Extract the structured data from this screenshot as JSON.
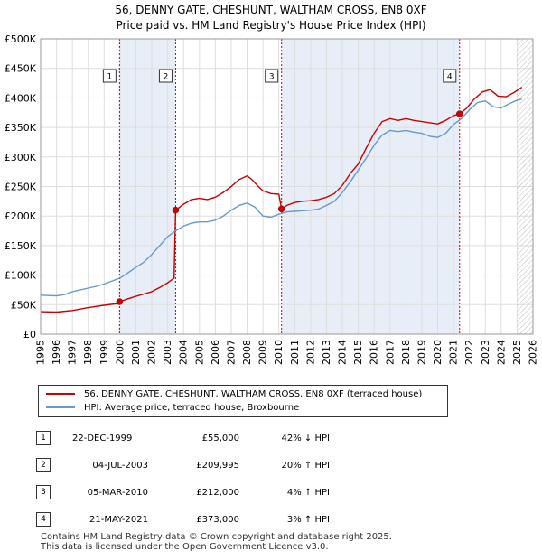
{
  "title_line1": "56, DENNY GATE, CHESHUNT, WALTHAM CROSS, EN8 0XF",
  "title_line2": "Price paid vs. HM Land Registry's House Price Index (HPI)",
  "legend": {
    "red": "56, DENNY GATE, CHESHUNT, WALTHAM CROSS, EN8 0XF (terraced house)",
    "blue": "HPI: Average price, terraced house, Broxbourne"
  },
  "colors": {
    "red": "#cc0000",
    "blue": "#6699cc",
    "band": "#e8eef8"
  },
  "sales": [
    {
      "num": "1",
      "date": "22-DEC-1999",
      "price": "£55,000",
      "hpi": "42% ↓ HPI"
    },
    {
      "num": "2",
      "date": "04-JUL-2003",
      "price": "£209,995",
      "hpi": "20% ↑ HPI"
    },
    {
      "num": "3",
      "date": "05-MAR-2010",
      "price": "£212,000",
      "hpi": "4% ↑ HPI"
    },
    {
      "num": "4",
      "date": "21-MAY-2021",
      "price": "£373,000",
      "hpi": "3% ↑ HPI"
    }
  ],
  "footer_line1": "Contains HM Land Registry data © Crown copyright and database right 2025.",
  "footer_line2": "This data is licensed under the Open Government Licence v3.0.",
  "chart_data": {
    "type": "line",
    "xlim": [
      1995,
      2026
    ],
    "ylim": [
      0,
      500000
    ],
    "y_ticks": [
      0,
      50000,
      100000,
      150000,
      200000,
      250000,
      300000,
      350000,
      400000,
      450000,
      500000
    ],
    "y_tick_labels": [
      "£0",
      "£50K",
      "£100K",
      "£150K",
      "£200K",
      "£250K",
      "£300K",
      "£350K",
      "£400K",
      "£450K",
      "£500K"
    ],
    "x_ticks": [
      1995,
      1996,
      1997,
      1998,
      1999,
      2000,
      2001,
      2002,
      2003,
      2004,
      2005,
      2006,
      2007,
      2008,
      2009,
      2010,
      2011,
      2012,
      2013,
      2014,
      2015,
      2016,
      2017,
      2018,
      2019,
      2020,
      2021,
      2022,
      2023,
      2024,
      2025,
      2026
    ],
    "x_tick_labels": [
      "1995",
      "1996",
      "1997",
      "1998",
      "1999",
      "2000",
      "2001",
      "2002",
      "2003",
      "2004",
      "2005",
      "2006",
      "2007",
      "2008",
      "2009",
      "2010",
      "2011",
      "2012",
      "2013",
      "2014",
      "2015",
      "2016",
      "2017",
      "2018",
      "2019",
      "2020",
      "2021",
      "2022",
      "2023",
      "2024",
      "2025",
      "2026"
    ],
    "grid": true,
    "shaded_bands": [
      [
        1999.97,
        2003.5
      ],
      [
        2010.17,
        2021.38
      ]
    ],
    "hatched_after": 2025.0,
    "markers": [
      {
        "label": "1",
        "x": 1999.97,
        "y": 55000
      },
      {
        "label": "2",
        "x": 2003.5,
        "y": 209995
      },
      {
        "label": "3",
        "x": 2010.17,
        "y": 212000
      },
      {
        "label": "4",
        "x": 2021.38,
        "y": 373000
      }
    ],
    "series": [
      {
        "name": "56, DENNY GATE, CHESHUNT, WALTHAM CROSS, EN8 0XF (terraced house)",
        "color": "#cc0000",
        "points": [
          [
            1995,
            38000
          ],
          [
            1996,
            37500
          ],
          [
            1997,
            40000
          ],
          [
            1998,
            45000
          ],
          [
            1999,
            49000
          ],
          [
            1999.9,
            52000
          ],
          [
            1999.97,
            55000
          ],
          [
            2000.5,
            60000
          ],
          [
            2001,
            64000
          ],
          [
            2001.5,
            68000
          ],
          [
            2002,
            72000
          ],
          [
            2002.5,
            79000
          ],
          [
            2003.0,
            87000
          ],
          [
            2003.4,
            95000
          ],
          [
            2003.5,
            209995
          ],
          [
            2004,
            220000
          ],
          [
            2004.5,
            228000
          ],
          [
            2005,
            230000
          ],
          [
            2005.5,
            228000
          ],
          [
            2006,
            232000
          ],
          [
            2006.5,
            240000
          ],
          [
            2007,
            250000
          ],
          [
            2007.5,
            262000
          ],
          [
            2008,
            268000
          ],
          [
            2008.3,
            262000
          ],
          [
            2008.7,
            250000
          ],
          [
            2009,
            243000
          ],
          [
            2009.5,
            238000
          ],
          [
            2010.0,
            237000
          ],
          [
            2010.17,
            212000
          ],
          [
            2010.5,
            218000
          ],
          [
            2011,
            223000
          ],
          [
            2011.5,
            225000
          ],
          [
            2012,
            226000
          ],
          [
            2012.5,
            228000
          ],
          [
            2013,
            232000
          ],
          [
            2013.5,
            238000
          ],
          [
            2014,
            252000
          ],
          [
            2014.5,
            272000
          ],
          [
            2015,
            288000
          ],
          [
            2015.5,
            315000
          ],
          [
            2016,
            340000
          ],
          [
            2016.5,
            360000
          ],
          [
            2017,
            365000
          ],
          [
            2017.5,
            362000
          ],
          [
            2018,
            365000
          ],
          [
            2018.5,
            362000
          ],
          [
            2019,
            360000
          ],
          [
            2019.5,
            358000
          ],
          [
            2020,
            356000
          ],
          [
            2020.5,
            362000
          ],
          [
            2021,
            370000
          ],
          [
            2021.38,
            373000
          ],
          [
            2021.8,
            382000
          ],
          [
            2022.3,
            398000
          ],
          [
            2022.8,
            410000
          ],
          [
            2023.3,
            414000
          ],
          [
            2023.8,
            403000
          ],
          [
            2024.3,
            402000
          ],
          [
            2024.8,
            409000
          ],
          [
            2025.3,
            418000
          ]
        ]
      },
      {
        "name": "HPI: Average price, terraced house, Broxbourne",
        "color": "#6699cc",
        "points": [
          [
            1995,
            66000
          ],
          [
            1995.5,
            65500
          ],
          [
            1996,
            65000
          ],
          [
            1996.5,
            67000
          ],
          [
            1997,
            72000
          ],
          [
            1997.5,
            75000
          ],
          [
            1998,
            78000
          ],
          [
            1998.5,
            81000
          ],
          [
            1999,
            85000
          ],
          [
            1999.5,
            90000
          ],
          [
            2000,
            95000
          ],
          [
            2000.5,
            104000
          ],
          [
            2001,
            113000
          ],
          [
            2001.5,
            122000
          ],
          [
            2002,
            135000
          ],
          [
            2002.5,
            150000
          ],
          [
            2003,
            165000
          ],
          [
            2003.5,
            175000
          ],
          [
            2004,
            183000
          ],
          [
            2004.5,
            188000
          ],
          [
            2005,
            190000
          ],
          [
            2005.5,
            190000
          ],
          [
            2006,
            193000
          ],
          [
            2006.5,
            200000
          ],
          [
            2007,
            210000
          ],
          [
            2007.5,
            218000
          ],
          [
            2008,
            222000
          ],
          [
            2008.5,
            215000
          ],
          [
            2009,
            200000
          ],
          [
            2009.5,
            198000
          ],
          [
            2010,
            203000
          ],
          [
            2010.5,
            207000
          ],
          [
            2011,
            208000
          ],
          [
            2011.5,
            209000
          ],
          [
            2012,
            210000
          ],
          [
            2012.5,
            212000
          ],
          [
            2013,
            218000
          ],
          [
            2013.5,
            225000
          ],
          [
            2014,
            240000
          ],
          [
            2014.5,
            258000
          ],
          [
            2015,
            278000
          ],
          [
            2015.5,
            298000
          ],
          [
            2016,
            320000
          ],
          [
            2016.5,
            337000
          ],
          [
            2017,
            345000
          ],
          [
            2017.5,
            343000
          ],
          [
            2018,
            345000
          ],
          [
            2018.5,
            342000
          ],
          [
            2019,
            340000
          ],
          [
            2019.5,
            335000
          ],
          [
            2020,
            333000
          ],
          [
            2020.5,
            340000
          ],
          [
            2021,
            355000
          ],
          [
            2021.5,
            365000
          ],
          [
            2022,
            380000
          ],
          [
            2022.5,
            392000
          ],
          [
            2023,
            395000
          ],
          [
            2023.5,
            385000
          ],
          [
            2024,
            383000
          ],
          [
            2024.5,
            390000
          ],
          [
            2025,
            396000
          ],
          [
            2025.3,
            398000
          ]
        ]
      }
    ]
  }
}
